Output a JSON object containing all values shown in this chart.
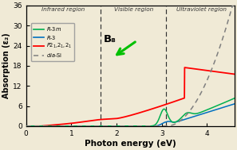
{
  "title": "",
  "xlabel": "Photon energy (eV)",
  "ylabel": "Absorption (ε₂)",
  "xlim": [
    0,
    4.6
  ],
  "ylim": [
    0,
    36
  ],
  "yticks": [
    0,
    6,
    12,
    18,
    24,
    30,
    36
  ],
  "xticks": [
    0,
    1,
    2,
    3,
    4
  ],
  "vline1": 1.65,
  "vline2": 3.1,
  "infrared_label": "Infrared region",
  "visible_label": "Visible region",
  "uv_label": "Ultraviolet region",
  "b8_label": "B₈",
  "b8_x": 1.72,
  "b8_y": 27.5,
  "colors": {
    "R3m": "#00B050",
    "R3": "#0070C0",
    "P21212": "#FF0000",
    "diaSi": "#7F7F7F",
    "background": "#F0EAD6"
  }
}
